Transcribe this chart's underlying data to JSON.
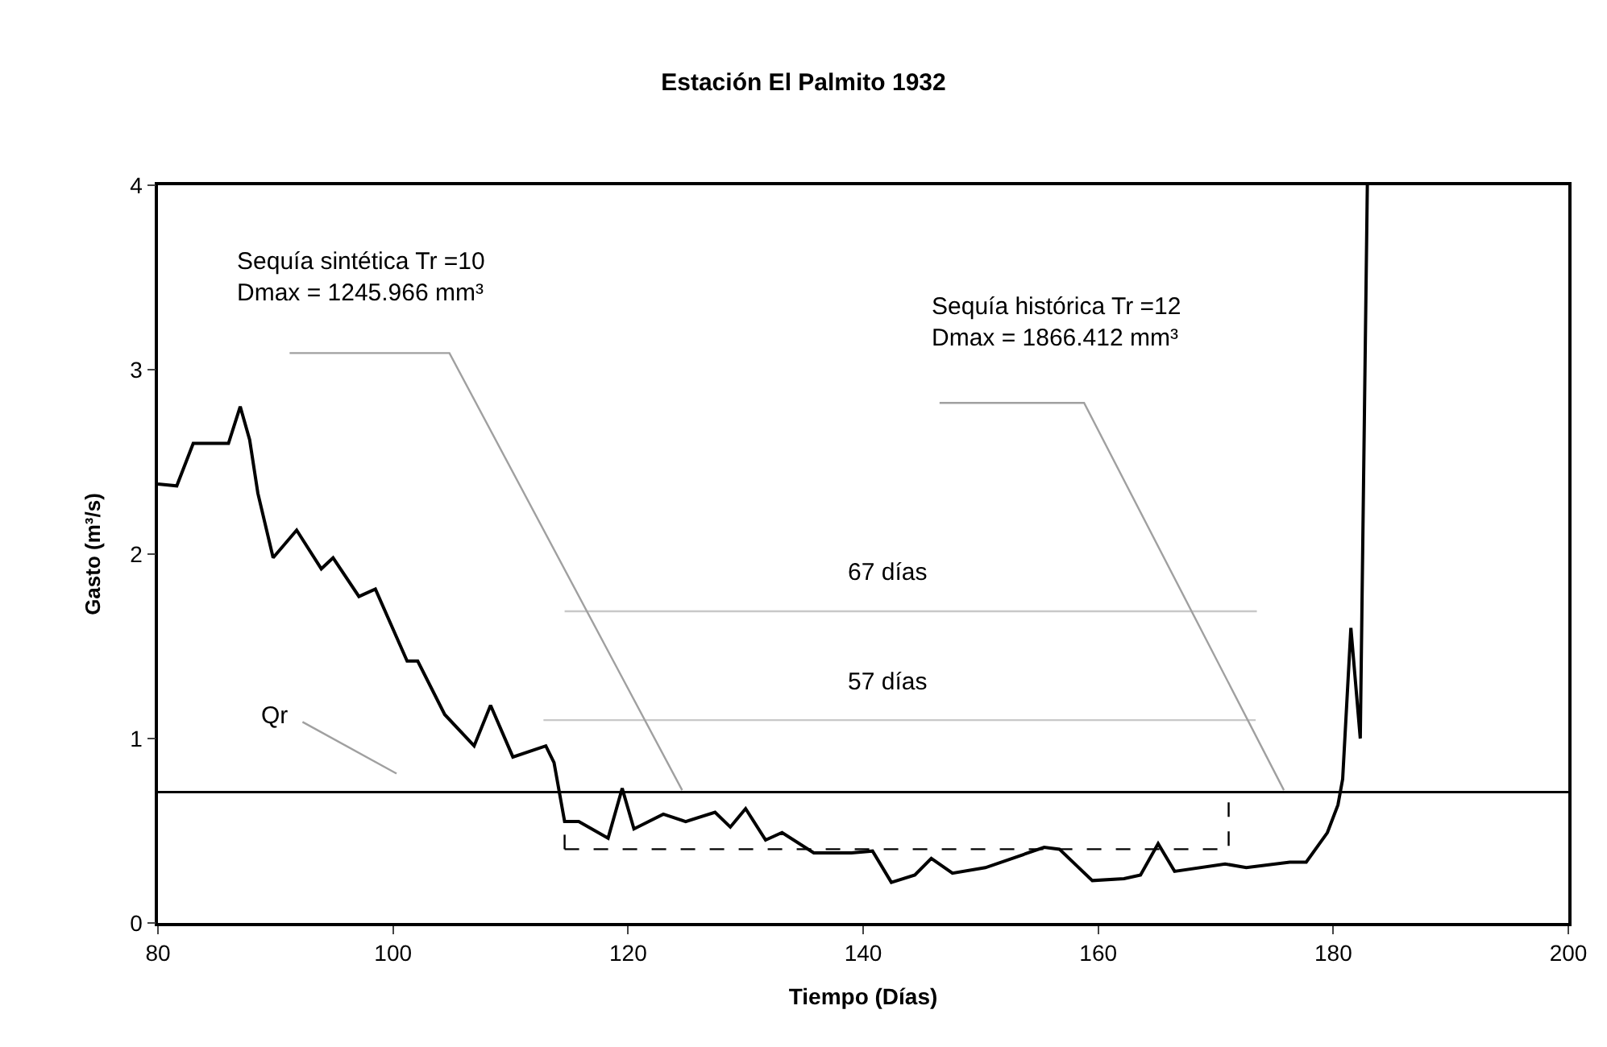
{
  "chart_data": {
    "type": "line",
    "title": "Estación El Palmito 1932",
    "xlabel": "Tiempo (Días)",
    "ylabel": "Gasto (m³/s)",
    "xlim": [
      80,
      200
    ],
    "xticks": [
      80,
      100,
      120,
      140,
      160,
      180,
      200
    ],
    "ylim": [
      0,
      4
    ],
    "yticks": [
      0,
      1,
      2,
      3,
      4
    ],
    "marker": "none",
    "series": [
      {
        "color": "#000000",
        "line_style": "solid",
        "x": [
          80,
          81.6,
          83,
          86,
          87,
          87.8,
          88.5,
          89.8,
          91.8,
          93.9,
          94.9,
          97.1,
          98.5,
          101.2,
          102.1,
          104.4,
          106.9,
          108.3,
          110.2,
          113,
          113.7,
          114.6,
          115.8,
          118.3,
          119.5,
          120.5,
          123,
          124.9,
          127.4,
          128.7,
          130,
          131.7,
          133.1,
          135.8,
          139,
          140.8,
          142.4,
          144.4,
          145.8,
          147.6,
          150.4,
          155.4,
          156.7,
          159.5,
          162.2,
          163.6,
          165.1,
          166.5,
          170.8,
          172.6,
          176.3,
          177.7,
          179.5,
          180.4,
          180.8,
          181.5,
          182.3,
          182.9
        ],
        "values": [
          2.38,
          2.37,
          2.6,
          2.6,
          2.8,
          2.62,
          2.33,
          1.98,
          2.13,
          1.92,
          1.98,
          1.77,
          1.81,
          1.42,
          1.42,
          1.13,
          0.96,
          1.18,
          0.9,
          0.96,
          0.87,
          0.55,
          0.55,
          0.46,
          0.73,
          0.51,
          0.59,
          0.55,
          0.6,
          0.52,
          0.62,
          0.45,
          0.49,
          0.38,
          0.38,
          0.39,
          0.22,
          0.26,
          0.35,
          0.27,
          0.3,
          0.41,
          0.4,
          0.23,
          0.24,
          0.26,
          0.43,
          0.28,
          0.32,
          0.3,
          0.33,
          0.33,
          0.49,
          0.64,
          0.78,
          1.6,
          1.0,
          4.0
        ]
      },
      {
        "color": "#000000",
        "line_style": "dashed",
        "x": [
          114.6,
          171.1,
          171.1
        ],
        "values": [
          0.4,
          0.4,
          0.71
        ]
      },
      {
        "color": "#000000",
        "line_style": "dashed",
        "x": [
          114.6,
          114.6
        ],
        "values": [
          0.4,
          0.55
        ]
      },
      {
        "color": "#c8c8c8",
        "line_style": "solid",
        "x": [
          114.6,
          173.5
        ],
        "values": [
          1.69,
          1.69
        ]
      },
      {
        "color": "#c8c8c8",
        "line_style": "solid",
        "x": [
          112.8,
          173.4
        ],
        "values": [
          1.1,
          1.1
        ]
      },
      {
        "color": "#a0a0a0",
        "line_style": "solid",
        "x": [
          91.2,
          104.8,
          124.6
        ],
        "values": [
          3.09,
          3.09,
          0.72
        ]
      },
      {
        "color": "#a0a0a0",
        "line_style": "solid",
        "x": [
          146.5,
          158.8,
          175.8
        ],
        "values": [
          2.82,
          2.82,
          0.72
        ]
      },
      {
        "color": "#a0a0a0",
        "line_style": "solid",
        "x": [
          92.3,
          100.3
        ],
        "values": [
          1.09,
          0.81
        ]
      }
    ],
    "ref_lines": [
      {
        "axis": "y",
        "value": 0.71,
        "color": "#000000"
      }
    ],
    "annotations": [
      "Sequía sintética Tr =10\nDmax = 1245.966 mm³",
      "Sequía histórica Tr =12\nDmax = 1866.412 mm³",
      "Qr",
      "67 días",
      "57 días"
    ]
  }
}
